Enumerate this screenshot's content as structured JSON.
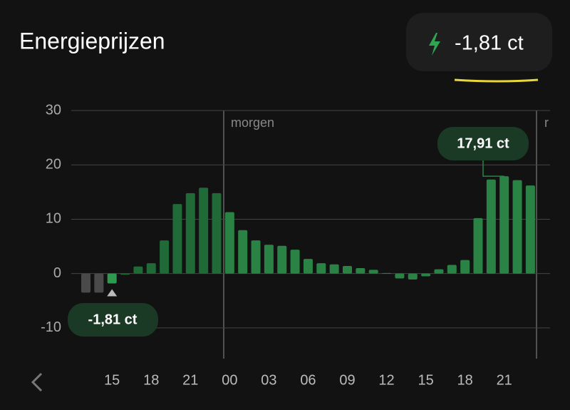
{
  "chart_data": {
    "type": "bar",
    "title": "Energieprijzen",
    "current_price_label": "-1,81 ct",
    "categories": [
      null,
      null,
      "15",
      null,
      null,
      "18",
      null,
      null,
      "21",
      null,
      null,
      "00",
      null,
      null,
      "03",
      null,
      null,
      "06",
      null,
      null,
      "09",
      null,
      null,
      "12",
      null,
      null,
      "15",
      null,
      null,
      "18",
      null,
      null,
      "21",
      null,
      null
    ],
    "values": [
      -3.5,
      -3.5,
      -1.81,
      -0.2,
      1.3,
      1.9,
      6.1,
      12.8,
      14.8,
      15.8,
      14.8,
      11.3,
      8.0,
      6.1,
      5.3,
      5.1,
      4.4,
      2.7,
      1.9,
      1.7,
      1.4,
      1.0,
      0.7,
      0.1,
      -0.9,
      -1.1,
      -0.5,
      0.8,
      1.6,
      2.5,
      10.2,
      17.3,
      17.91,
      17.2,
      16.2
    ],
    "value_labels": [
      null,
      null,
      "-1,81 ct",
      null,
      null,
      null,
      null,
      null,
      null,
      null,
      null,
      null,
      null,
      null,
      null,
      null,
      null,
      null,
      null,
      null,
      null,
      null,
      null,
      null,
      null,
      null,
      null,
      null,
      null,
      null,
      null,
      null,
      "17,91 ct",
      null,
      null
    ],
    "colors": [
      "#4a4a4a",
      "#4a4a4a",
      "#2f9a4f",
      "#1f6a36",
      "#1f6a36",
      "#1f6a36",
      "#1f6a36",
      "#1f6a36",
      "#1f6a36",
      "#1f6a36",
      "#1f6a36",
      "#2a8245",
      "#2a8245",
      "#2a8245",
      "#2a8245",
      "#2a8245",
      "#2a8245",
      "#2a8245",
      "#2a8245",
      "#2a8245",
      "#2a8245",
      "#2a8245",
      "#2a8245",
      "#2a8245",
      "#2a8245",
      "#2a8245",
      "#2a8245",
      "#2a8245",
      "#2a8245",
      "#2a8245",
      "#2a8245",
      "#2a8245",
      "#2a8245",
      "#2a8245",
      "#2a8245"
    ],
    "annotations": [
      "morgen",
      "r"
    ],
    "ylim": [
      -15,
      30
    ],
    "yticks": [
      -10,
      0,
      10,
      20,
      30
    ],
    "grid": true
  }
}
